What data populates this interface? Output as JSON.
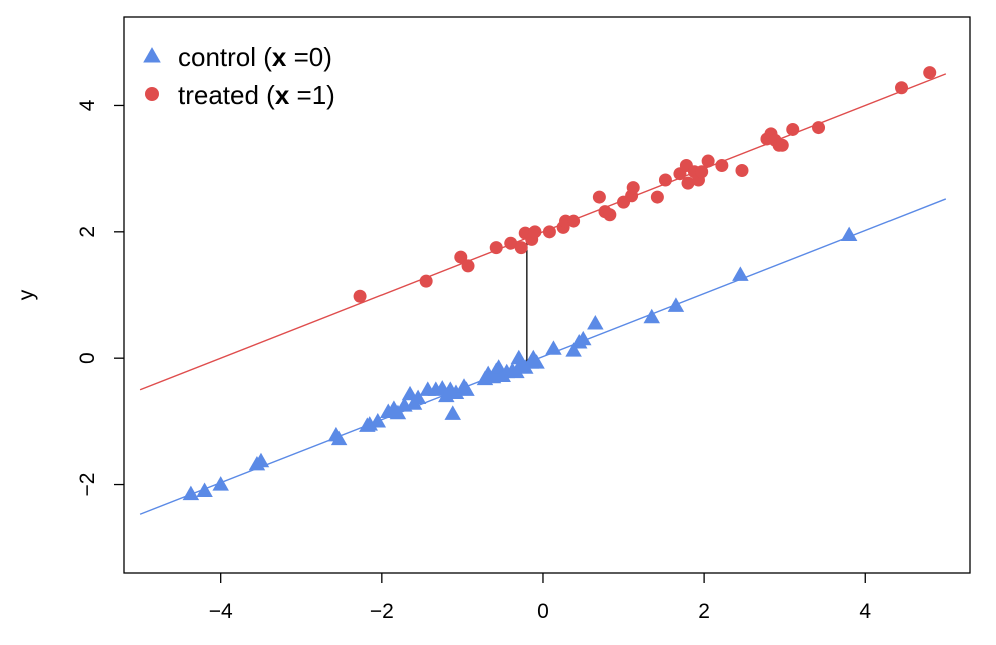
{
  "chart_data": {
    "type": "scatter",
    "xlabel": "",
    "ylabel": "y",
    "xlim": [
      -5.2,
      5.3
    ],
    "ylim": [
      -3.4,
      5.4
    ],
    "xticks": [
      -4,
      -2,
      0,
      2,
      4
    ],
    "yticks": [
      -2,
      0,
      2,
      4
    ],
    "tick_labels_x": [
      "−4",
      "−2",
      "0",
      "2",
      "4"
    ],
    "tick_labels_y": [
      "−2",
      "0",
      "2",
      "4"
    ],
    "legend": {
      "placement": "top-left",
      "entries": [
        {
          "prefix": "control (",
          "bold": "x",
          "suffix": " =0)",
          "marker": "triangle",
          "color": "#5b8ae6"
        },
        {
          "prefix": "treated (",
          "bold": "x",
          "suffix": " =1)",
          "marker": "circle",
          "color": "#df4d4d"
        }
      ]
    },
    "series": [
      {
        "name": "control (x=0)",
        "marker": "triangle",
        "color": "#5b8ae6",
        "fit_line": {
          "x": [
            -5,
            5
          ],
          "y": [
            -2.47,
            2.52
          ]
        },
        "points": [
          [
            -4.37,
            -2.15
          ],
          [
            -4.2,
            -2.1
          ],
          [
            -4.0,
            -2.0
          ],
          [
            -3.55,
            -1.68
          ],
          [
            -3.5,
            -1.63
          ],
          [
            -2.57,
            -1.22
          ],
          [
            -2.53,
            -1.28
          ],
          [
            -2.18,
            -1.07
          ],
          [
            -2.15,
            -1.05
          ],
          [
            -2.05,
            -1.0
          ],
          [
            -1.92,
            -0.85
          ],
          [
            -1.85,
            -0.8
          ],
          [
            -1.8,
            -0.87
          ],
          [
            -1.72,
            -0.75
          ],
          [
            -1.65,
            -0.57
          ],
          [
            -1.6,
            -0.72
          ],
          [
            -1.55,
            -0.63
          ],
          [
            -1.43,
            -0.5
          ],
          [
            -1.33,
            -0.5
          ],
          [
            -1.25,
            -0.48
          ],
          [
            -1.2,
            -0.6
          ],
          [
            -1.17,
            -0.55
          ],
          [
            -1.15,
            -0.5
          ],
          [
            -1.12,
            -0.88
          ],
          [
            -1.08,
            -0.55
          ],
          [
            -0.98,
            -0.45
          ],
          [
            -0.95,
            -0.5
          ],
          [
            -0.72,
            -0.33
          ],
          [
            -0.68,
            -0.25
          ],
          [
            -0.62,
            -0.3
          ],
          [
            -0.58,
            -0.2
          ],
          [
            -0.55,
            -0.15
          ],
          [
            -0.5,
            -0.28
          ],
          [
            -0.45,
            -0.22
          ],
          [
            -0.38,
            -0.2
          ],
          [
            -0.33,
            -0.22
          ],
          [
            -0.3,
            0.0
          ],
          [
            -0.27,
            -0.1
          ],
          [
            -0.22,
            -0.15
          ],
          [
            -0.15,
            -0.07
          ],
          [
            -0.12,
            0.0
          ],
          [
            -0.08,
            -0.07
          ],
          [
            0.13,
            0.15
          ],
          [
            0.38,
            0.12
          ],
          [
            0.45,
            0.25
          ],
          [
            0.5,
            0.3
          ],
          [
            0.65,
            0.55
          ],
          [
            1.35,
            0.65
          ],
          [
            1.65,
            0.83
          ],
          [
            2.45,
            1.32
          ],
          [
            3.8,
            1.95
          ]
        ]
      },
      {
        "name": "treated (x=1)",
        "marker": "circle",
        "color": "#df4d4d",
        "fit_line": {
          "x": [
            -5,
            5
          ],
          "y": [
            -0.5,
            4.5
          ]
        },
        "points": [
          [
            -2.27,
            0.98
          ],
          [
            -1.45,
            1.22
          ],
          [
            -1.02,
            1.6
          ],
          [
            -0.93,
            1.46
          ],
          [
            -0.58,
            1.75
          ],
          [
            -0.4,
            1.82
          ],
          [
            -0.27,
            1.75
          ],
          [
            -0.22,
            1.98
          ],
          [
            -0.14,
            1.88
          ],
          [
            -0.1,
            2.0
          ],
          [
            0.08,
            2.0
          ],
          [
            0.25,
            2.07
          ],
          [
            0.28,
            2.17
          ],
          [
            0.38,
            2.17
          ],
          [
            0.7,
            2.55
          ],
          [
            0.77,
            2.32
          ],
          [
            0.83,
            2.27
          ],
          [
            1.0,
            2.47
          ],
          [
            1.1,
            2.57
          ],
          [
            1.12,
            2.7
          ],
          [
            1.42,
            2.55
          ],
          [
            1.52,
            2.82
          ],
          [
            1.7,
            2.92
          ],
          [
            1.78,
            3.05
          ],
          [
            1.8,
            2.77
          ],
          [
            1.88,
            2.95
          ],
          [
            1.93,
            2.82
          ],
          [
            1.97,
            2.95
          ],
          [
            2.05,
            3.12
          ],
          [
            2.22,
            3.05
          ],
          [
            2.47,
            2.97
          ],
          [
            2.78,
            3.47
          ],
          [
            2.83,
            3.55
          ],
          [
            2.88,
            3.45
          ],
          [
            2.93,
            3.37
          ],
          [
            2.97,
            3.37
          ],
          [
            3.1,
            3.62
          ],
          [
            3.42,
            3.65
          ],
          [
            4.45,
            4.28
          ],
          [
            4.8,
            4.52
          ]
        ]
      }
    ],
    "treatment_effect_segment": {
      "x": -0.2,
      "y_from": -0.07,
      "y_to": 1.93
    }
  }
}
